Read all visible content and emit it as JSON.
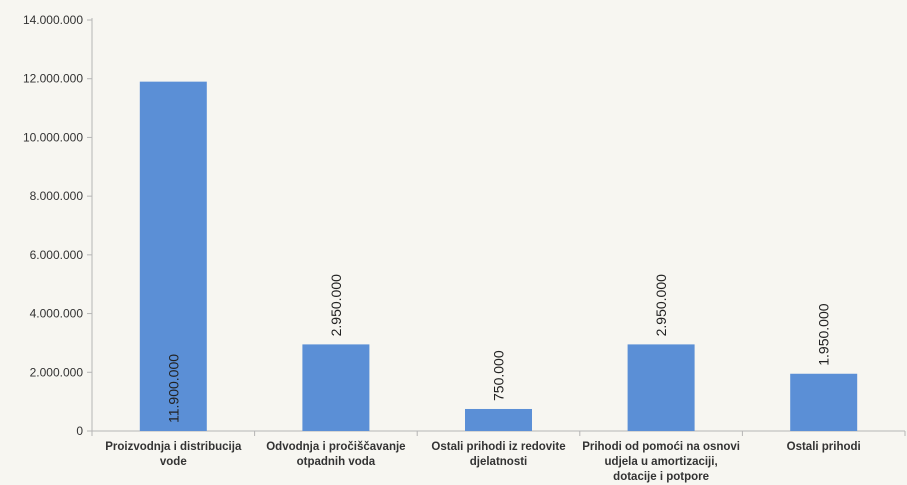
{
  "chart_data": {
    "type": "bar",
    "title": "",
    "xlabel": "",
    "ylabel": "",
    "ylim": [
      0,
      14000000
    ],
    "yticks": [
      0,
      2000000,
      4000000,
      6000000,
      8000000,
      10000000,
      12000000,
      14000000
    ],
    "ytick_labels": [
      "0",
      "2.000.000",
      "4.000.000",
      "6.000.000",
      "8.000.000",
      "10.000.000",
      "12.000.000",
      "14.000.000"
    ],
    "grid": false,
    "legend": "none",
    "bar_color": "#5b8fd6",
    "categories": [
      [
        "Proizvodnja i distribucija",
        "vode"
      ],
      [
        "Odvodnja i pročiščavanje",
        "otpadnih voda"
      ],
      [
        "Ostali prihodi iz redovite",
        "djelatnosti"
      ],
      [
        "Prihodi od pomoći na osnovi",
        "udjela u amortizaciji,",
        "dotacije i potpore"
      ],
      [
        "Ostali prihodi"
      ]
    ],
    "values": [
      11900000,
      2950000,
      750000,
      2950000,
      1950000
    ],
    "data_labels": [
      "11.900.000",
      "2.950.000",
      "750.000",
      "2.950.000",
      "1.950.000"
    ]
  }
}
